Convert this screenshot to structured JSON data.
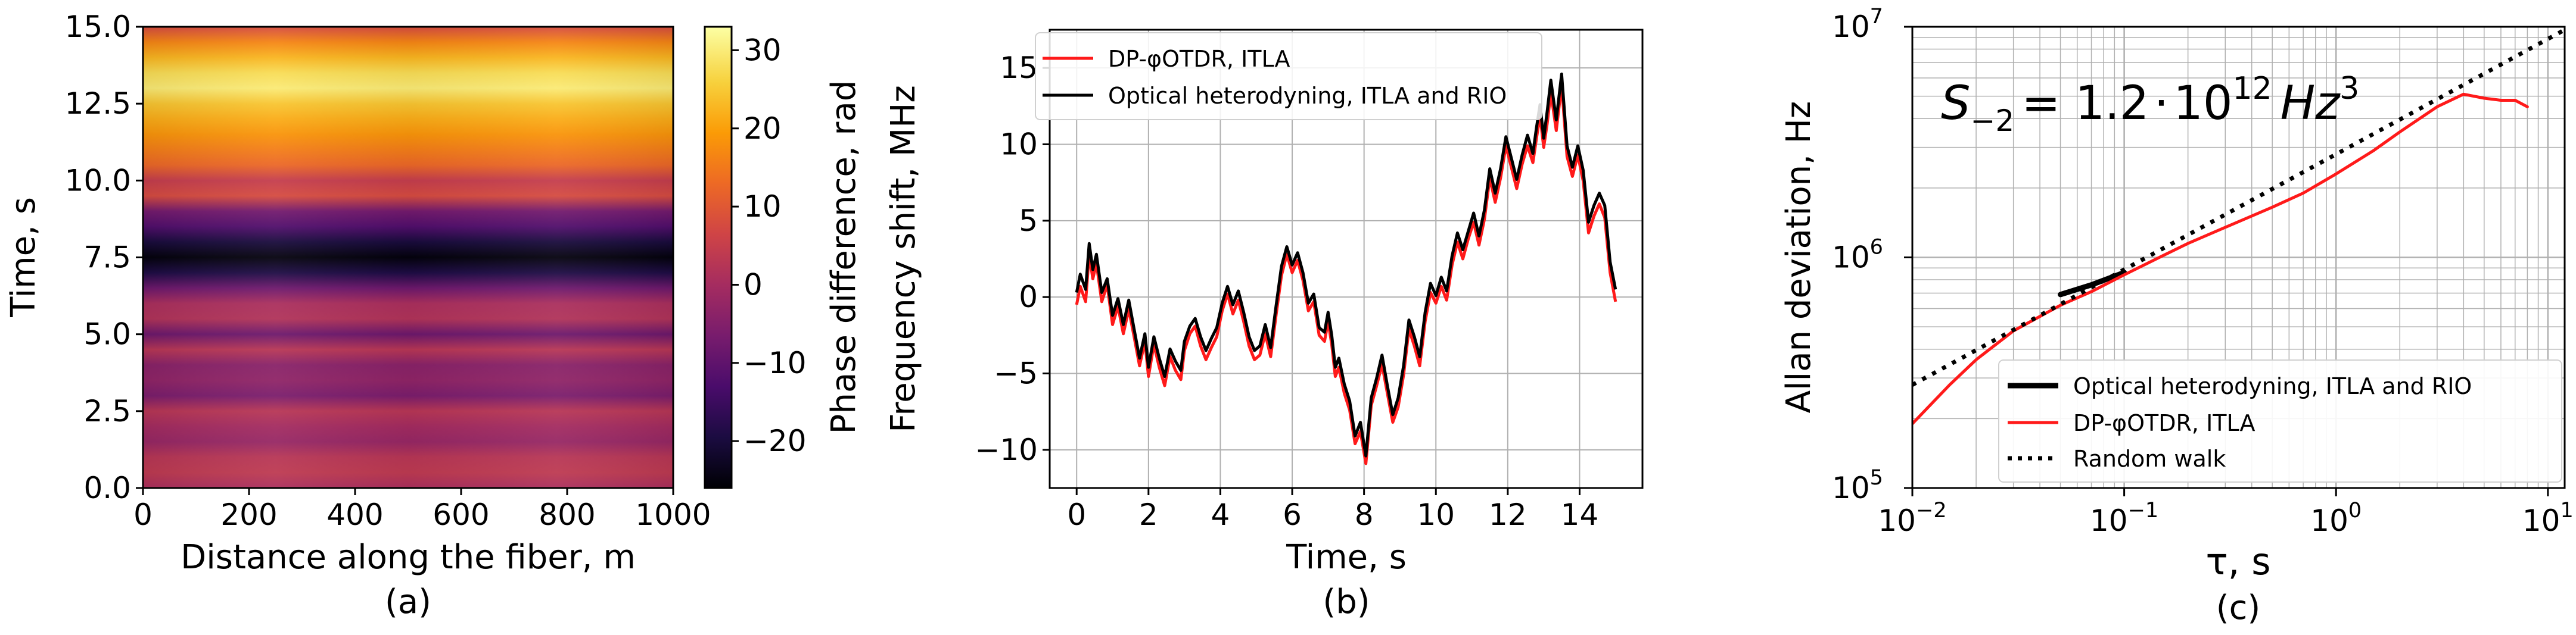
{
  "figure": {
    "panels": [
      {
        "caption": "(a)"
      },
      {
        "caption": "(b)"
      },
      {
        "caption": "(c)"
      }
    ]
  },
  "colors": {
    "red": "#ff1a1a",
    "black": "#000000",
    "grid": "#b0b0b0",
    "inferno": [
      "#000004",
      "#1b0c41",
      "#4a0c6b",
      "#781c6d",
      "#a52c60",
      "#cf4446",
      "#ed6925",
      "#fb9b06",
      "#f7d13d",
      "#fcffa4"
    ]
  },
  "chart_data": [
    {
      "type": "heatmap",
      "title": "",
      "xlabel": "Distance along the fiber, m",
      "ylabel": "Time, s",
      "xlim": [
        0,
        1000
      ],
      "ylim": [
        0,
        15
      ],
      "xticks": [
        0,
        200,
        400,
        600,
        800,
        1000
      ],
      "xtick_labels": [
        "0",
        "200",
        "400",
        "600",
        "800",
        "1000"
      ],
      "yticks": [
        0,
        2.5,
        5,
        7.5,
        10,
        12.5,
        15
      ],
      "ytick_labels": [
        "0.0",
        "2.5",
        "5.0",
        "7.5",
        "10.0",
        "12.5",
        "15.0"
      ],
      "colorbar": {
        "label": "Phase difference, rad",
        "range": [
          -26,
          33
        ],
        "ticks": [
          -20,
          -10,
          0,
          10,
          20,
          30
        ],
        "tick_labels": [
          "−20",
          "−10",
          "0",
          "10",
          "20",
          "30"
        ],
        "colormap": "inferno"
      },
      "time_s": [
        0,
        0.5,
        1,
        1.5,
        2,
        2.5,
        3,
        3.5,
        4,
        4.5,
        5,
        5.5,
        6,
        6.5,
        7,
        7.5,
        8,
        8.5,
        9,
        9.5,
        10,
        10.5,
        11,
        11.5,
        12,
        12.5,
        13,
        13.5,
        14,
        14.5,
        15
      ],
      "phase_rad_vs_time": [
        1,
        4,
        3,
        -2,
        0,
        3,
        -6,
        -3,
        -4,
        3,
        -8,
        2,
        1,
        -8,
        -19,
        -25,
        -20,
        -12,
        -7,
        8,
        5,
        13,
        16,
        19,
        22,
        25,
        30,
        28,
        23,
        17,
        8
      ]
    },
    {
      "type": "line",
      "title": "",
      "xlabel": "Time, s",
      "ylabel": "Frequency shift, MHz",
      "xlim": [
        -0.75,
        15.75
      ],
      "ylim": [
        -12.5,
        17.5
      ],
      "xticks": [
        0,
        2,
        4,
        6,
        8,
        10,
        12,
        14
      ],
      "xtick_labels": [
        "0",
        "2",
        "4",
        "6",
        "8",
        "10",
        "12",
        "14"
      ],
      "yticks": [
        -10,
        -5,
        0,
        5,
        10,
        15
      ],
      "ytick_labels": [
        "−10",
        "−5",
        "0",
        "5",
        "10",
        "15"
      ],
      "grid": true,
      "legend": "top-left",
      "x": [
        0,
        0.1,
        0.25,
        0.35,
        0.45,
        0.55,
        0.7,
        0.85,
        1,
        1.15,
        1.3,
        1.45,
        1.6,
        1.75,
        1.9,
        2,
        2.15,
        2.3,
        2.45,
        2.6,
        2.75,
        2.9,
        3,
        3.15,
        3.3,
        3.45,
        3.6,
        3.75,
        3.9,
        4.05,
        4.2,
        4.35,
        4.5,
        4.65,
        4.8,
        4.95,
        5.1,
        5.25,
        5.4,
        5.55,
        5.7,
        5.85,
        6,
        6.15,
        6.3,
        6.45,
        6.6,
        6.75,
        6.9,
        7,
        7.1,
        7.2,
        7.3,
        7.45,
        7.6,
        7.75,
        7.9,
        8.05,
        8.2,
        8.35,
        8.5,
        8.65,
        8.8,
        8.95,
        9.1,
        9.25,
        9.4,
        9.55,
        9.7,
        9.85,
        10,
        10.15,
        10.3,
        10.45,
        10.6,
        10.75,
        10.9,
        11.05,
        11.2,
        11.35,
        11.5,
        11.65,
        11.8,
        11.95,
        12.1,
        12.25,
        12.4,
        12.55,
        12.7,
        12.8,
        12.9,
        13,
        13.1,
        13.2,
        13.35,
        13.5,
        13.65,
        13.8,
        13.95,
        14.1,
        14.25,
        14.4,
        14.55,
        14.7,
        14.85,
        15
      ],
      "series": [
        {
          "name": "DP-φOTDR, ITLA",
          "color": "#ff1a1a",
          "values": [
            -0.5,
            0.7,
            -0.3,
            2.8,
            1.2,
            2.2,
            -0.3,
            0.8,
            -1.8,
            -0.6,
            -2.4,
            -0.8,
            -2.6,
            -4.5,
            -2.9,
            -5.2,
            -3.1,
            -4.6,
            -5.8,
            -3.9,
            -4.8,
            -5.4,
            -3.5,
            -2.4,
            -1.9,
            -3.2,
            -4.1,
            -3.3,
            -2.6,
            -0.9,
            0.2,
            -1.1,
            -0.2,
            -1.6,
            -3.2,
            -4.1,
            -3.8,
            -2.4,
            -3.9,
            -1.2,
            1.4,
            2.8,
            1.6,
            2.4,
            1.1,
            -0.9,
            -0.3,
            -2.5,
            -2.9,
            -1.6,
            -3.1,
            -5.2,
            -4.6,
            -6.3,
            -7.4,
            -9.6,
            -8.8,
            -10.9,
            -7.1,
            -5.8,
            -4.4,
            -6.3,
            -8.2,
            -7.2,
            -5.1,
            -2.1,
            -3.2,
            -4.5,
            -1.6,
            0.3,
            -0.4,
            0.7,
            -0.2,
            2.1,
            3.6,
            2.5,
            3.8,
            4.9,
            3.4,
            5.1,
            7.8,
            6.2,
            7.8,
            9.9,
            8.5,
            7.1,
            8.7,
            9.9,
            8.8,
            10.4,
            11.9,
            9.8,
            11.4,
            13.4,
            10.9,
            13.9,
            9.2,
            7.9,
            9.3,
            7.6,
            4.2,
            5.3,
            6.1,
            5.2,
            1.6,
            -0.3
          ]
        },
        {
          "name": "Optical heterodyning, ITLA and RIO",
          "color": "#000000",
          "values": [
            0.3,
            1.5,
            0.5,
            3.5,
            1.8,
            2.8,
            0.3,
            1.2,
            -1.2,
            -0.1,
            -1.8,
            -0.2,
            -2.1,
            -4,
            -2.4,
            -4.6,
            -2.6,
            -4,
            -5.2,
            -3.4,
            -4.2,
            -4.8,
            -2.9,
            -1.9,
            -1.4,
            -2.6,
            -3.5,
            -2.7,
            -2,
            -0.4,
            0.7,
            -0.5,
            0.4,
            -1,
            -2.6,
            -3.5,
            -3.2,
            -1.8,
            -3.3,
            -0.6,
            2,
            3.3,
            2.1,
            2.9,
            1.6,
            -0.4,
            0.2,
            -2,
            -2.3,
            -1,
            -2.5,
            -4.6,
            -4,
            -5.7,
            -6.8,
            -9.1,
            -8.2,
            -10.4,
            -6.6,
            -5.3,
            -3.8,
            -5.8,
            -7.7,
            -6.6,
            -4.5,
            -1.5,
            -2.6,
            -3.9,
            -1,
            0.9,
            0.1,
            1.3,
            0.4,
            2.7,
            4.2,
            3.1,
            4.3,
            5.5,
            4,
            5.7,
            8.4,
            6.8,
            8.4,
            10.5,
            9.1,
            7.7,
            9.3,
            10.6,
            9.4,
            11.1,
            12.6,
            10.4,
            12.2,
            14.2,
            11.6,
            14.6,
            9.9,
            8.5,
            9.9,
            8.3,
            4.9,
            6,
            6.8,
            6,
            2.3,
            0.5
          ]
        }
      ]
    },
    {
      "type": "line",
      "title": "",
      "xlabel": "τ, s",
      "ylabel": "Allan deviation, Hz",
      "xscale": "log",
      "yscale": "log",
      "xlim": [
        0.01,
        12
      ],
      "ylim": [
        100000,
        10000000
      ],
      "xticks": [
        0.01,
        0.1,
        1,
        10
      ],
      "xtick_labels": [
        [
          "10",
          "−2"
        ],
        [
          "10",
          "−1"
        ],
        [
          "10",
          "0"
        ],
        [
          "10",
          "1"
        ]
      ],
      "yticks": [
        100000,
        1000000,
        10000000
      ],
      "ytick_labels": [
        [
          "10",
          "5"
        ],
        [
          "10",
          "6"
        ],
        [
          "10",
          "7"
        ]
      ],
      "grid": true,
      "legend": "bottom-right",
      "annotation": {
        "base": "S",
        "sub": "−2",
        "mid": "= 1.2",
        "dot": "⋅",
        "ten": "10",
        "exp": "12",
        "unit": "Hz",
        "unit_exp": "3"
      },
      "series": [
        {
          "name": "Optical heterodyning, ITLA and RIO",
          "color": "#000000",
          "x": [
            0.05,
            0.07,
            0.1
          ],
          "values": [
            690000,
            760000,
            860000
          ]
        },
        {
          "name": "DP-φOTDR, ITLA",
          "color": "#ff1a1a",
          "x": [
            0.01,
            0.015,
            0.02,
            0.03,
            0.05,
            0.07,
            0.1,
            0.15,
            0.2,
            0.3,
            0.5,
            0.7,
            1,
            1.5,
            2,
            3,
            4,
            5,
            6,
            7,
            8
          ],
          "values": [
            190000,
            280000,
            360000,
            480000,
            620000,
            710000,
            840000,
            1010000,
            1150000,
            1350000,
            1650000,
            1900000,
            2300000,
            2900000,
            3500000,
            4500000,
            5100000,
            4900000,
            4800000,
            4800000,
            4500000
          ]
        },
        {
          "name": "Random walk",
          "color": "#000000",
          "dashed": true,
          "x": [
            0.01,
            12
          ],
          "values": [
            280000,
            9700000
          ]
        }
      ]
    }
  ]
}
